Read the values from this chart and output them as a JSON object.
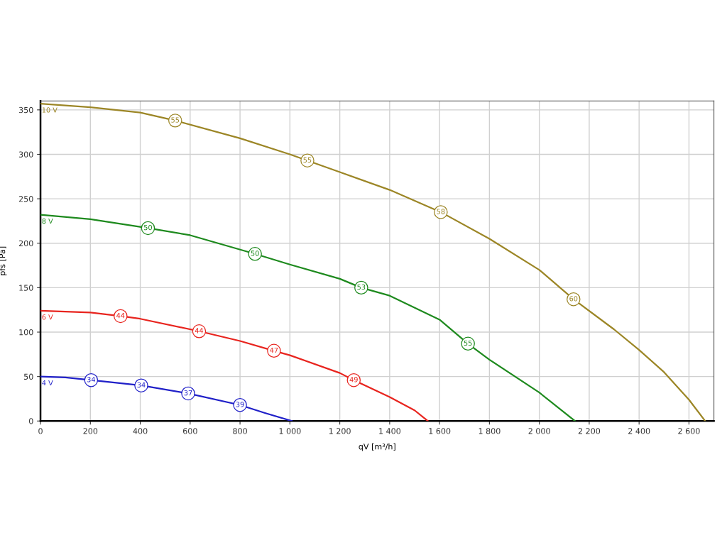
{
  "chart_data": {
    "type": "line",
    "xlabel": "qV [m³/h]",
    "ylabel": "pfs [Pa]",
    "xlim": [
      0,
      2700
    ],
    "ylim": [
      0,
      360
    ],
    "xticks": [
      0,
      200,
      400,
      600,
      800,
      {
        "value": 1000,
        "label": "1 000"
      },
      {
        "value": 1200,
        "label": "1 200"
      },
      {
        "value": 1400,
        "label": "1 400"
      },
      {
        "value": 1600,
        "label": "1 600"
      },
      {
        "value": 1800,
        "label": "1 800"
      },
      {
        "value": 2000,
        "label": "2 000"
      },
      {
        "value": 2200,
        "label": "2 200"
      },
      {
        "value": 2400,
        "label": "2 400"
      },
      {
        "value": 2600,
        "label": "2 600"
      }
    ],
    "yticks": [
      0,
      50,
      100,
      150,
      200,
      250,
      300,
      350
    ],
    "grid": true,
    "legend": false,
    "line_style": "solid",
    "series": [
      {
        "name": "10 V",
        "color": "#9c8626",
        "x": [
          0,
          200,
          400,
          540,
          800,
          1000,
          1070,
          1200,
          1400,
          1605,
          1800,
          2000,
          2137,
          2300,
          2400,
          2500,
          2600,
          2665
        ],
        "values": [
          357,
          353,
          347,
          338,
          318,
          300,
          293,
          280,
          260,
          235,
          205,
          170,
          137,
          103,
          80,
          55,
          24,
          0
        ]
      },
      {
        "name": "8 V",
        "color": "#1e8a1e",
        "x": [
          0,
          200,
          431,
          600,
          860,
          1000,
          1200,
          1286,
          1400,
          1600,
          1714,
          1800,
          2000,
          2143
        ],
        "values": [
          232,
          227,
          217,
          209,
          188,
          176,
          160,
          150,
          141,
          114,
          87,
          69,
          32,
          0
        ]
      },
      {
        "name": "6 V",
        "color": "#e8241e",
        "x": [
          0,
          200,
          321,
          400,
          636,
          800,
          936,
          1000,
          1200,
          1256,
          1400,
          1500,
          1553
        ],
        "values": [
          124,
          122,
          118,
          115,
          101,
          90,
          79,
          74,
          54,
          46,
          27,
          12,
          0
        ]
      },
      {
        "name": "4 V",
        "color": "#2020c8",
        "x": [
          0,
          100,
          203,
          404,
          592,
          800,
          900,
          1008
        ],
        "values": [
          50,
          49,
          46,
          40,
          31,
          18,
          9,
          0
        ]
      }
    ],
    "annotations": [
      {
        "text": "55",
        "x": 540,
        "y": 338
      },
      {
        "text": "55",
        "x": 1070,
        "y": 293
      },
      {
        "text": "58",
        "x": 1605,
        "y": 235
      },
      {
        "text": "60",
        "x": 2137,
        "y": 137
      },
      {
        "text": "50",
        "x": 431,
        "y": 217
      },
      {
        "text": "50",
        "x": 860,
        "y": 188
      },
      {
        "text": "53",
        "x": 1286,
        "y": 150
      },
      {
        "text": "55",
        "x": 1714,
        "y": 87
      },
      {
        "text": "44",
        "x": 321,
        "y": 118
      },
      {
        "text": "44",
        "x": 636,
        "y": 101
      },
      {
        "text": "47",
        "x": 936,
        "y": 79
      },
      {
        "text": "49",
        "x": 1256,
        "y": 46
      },
      {
        "text": "34",
        "x": 203,
        "y": 46
      },
      {
        "text": "34",
        "x": 404,
        "y": 40
      },
      {
        "text": "37",
        "x": 592,
        "y": 31
      },
      {
        "text": "39",
        "x": 800,
        "y": 18
      }
    ]
  }
}
